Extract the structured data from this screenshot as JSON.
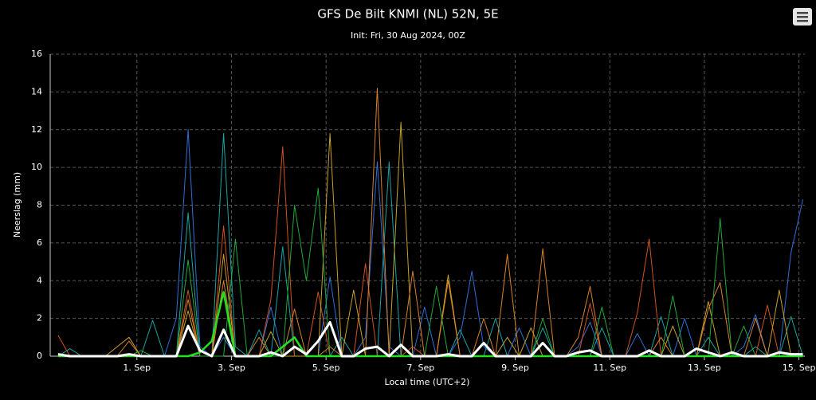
{
  "chart_data": {
    "type": "line",
    "title": "GFS De Bilt KNMI (NL) 52N, 5E",
    "subtitle": "Init: Fri, 30 Aug 2024, 00Z",
    "xlabel": "Local time (UTC+2)",
    "ylabel": "Neerslag (mm)",
    "grid": true,
    "x": [
      "2024-08-30T08:00",
      "2024-08-30T14:00",
      "2024-08-30T20:00",
      "2024-08-31T02:00",
      "2024-08-31T08:00",
      "2024-08-31T14:00",
      "2024-08-31T20:00",
      "2024-09-01T02:00",
      "2024-09-01T08:00",
      "2024-09-01T14:00",
      "2024-09-01T20:00",
      "2024-09-02T02:00",
      "2024-09-02T08:00",
      "2024-09-02T14:00",
      "2024-09-02T20:00",
      "2024-09-03T02:00",
      "2024-09-03T08:00",
      "2024-09-03T14:00",
      "2024-09-03T20:00",
      "2024-09-04T02:00",
      "2024-09-04T08:00",
      "2024-09-04T14:00",
      "2024-09-04T20:00",
      "2024-09-05T02:00",
      "2024-09-05T08:00",
      "2024-09-05T14:00",
      "2024-09-05T20:00",
      "2024-09-06T02:00",
      "2024-09-06T08:00",
      "2024-09-06T14:00",
      "2024-09-06T20:00",
      "2024-09-07T02:00",
      "2024-09-07T08:00",
      "2024-09-07T14:00",
      "2024-09-07T20:00",
      "2024-09-08T02:00",
      "2024-09-08T08:00",
      "2024-09-08T14:00",
      "2024-09-08T20:00",
      "2024-09-09T02:00",
      "2024-09-09T08:00",
      "2024-09-09T14:00",
      "2024-09-09T20:00",
      "2024-09-10T02:00",
      "2024-09-10T08:00",
      "2024-09-10T14:00",
      "2024-09-10T20:00",
      "2024-09-11T02:00",
      "2024-09-11T08:00",
      "2024-09-11T14:00",
      "2024-09-11T20:00",
      "2024-09-12T02:00",
      "2024-09-12T08:00",
      "2024-09-12T14:00",
      "2024-09-12T20:00",
      "2024-09-13T02:00",
      "2024-09-13T08:00",
      "2024-09-13T14:00",
      "2024-09-13T20:00",
      "2024-09-14T02:00",
      "2024-09-14T08:00",
      "2024-09-14T14:00",
      "2024-09-14T20:00",
      "2024-09-15T02:00"
    ],
    "xlim": [
      "2024-08-30T04:00",
      "2024-09-15T03:00"
    ],
    "xticks": [
      {
        "value": "2024-09-01T00:00",
        "label": "1. Sep"
      },
      {
        "value": "2024-09-03T00:00",
        "label": "3. Sep"
      },
      {
        "value": "2024-09-05T00:00",
        "label": "5. Sep"
      },
      {
        "value": "2024-09-07T00:00",
        "label": "7. Sep"
      },
      {
        "value": "2024-09-09T00:00",
        "label": "9. Sep"
      },
      {
        "value": "2024-09-11T00:00",
        "label": "11. Sep"
      },
      {
        "value": "2024-09-13T00:00",
        "label": "13. Sep"
      },
      {
        "value": "2024-09-15T00:00",
        "label": "15. Sep"
      }
    ],
    "ylim": [
      0,
      16
    ],
    "yticks": [
      0,
      2,
      4,
      6,
      8,
      10,
      12,
      14,
      16
    ],
    "series": [
      {
        "color": "#2f6fd6",
        "width": 1,
        "values": [
          0,
          0,
          0,
          0,
          0,
          0,
          0,
          0,
          0,
          0,
          2,
          12,
          0.5,
          0,
          1,
          0,
          0,
          0,
          2.6,
          0,
          0,
          0,
          0,
          4.2,
          0,
          0,
          1,
          10.3,
          0.5,
          0,
          0,
          2.6,
          0,
          0,
          1,
          4.5,
          0.5,
          0,
          0,
          1.5,
          0,
          0,
          0,
          0,
          0.5,
          1.8,
          0,
          0,
          0,
          1.2,
          0,
          0,
          0,
          2,
          0,
          0,
          0,
          0,
          0.5,
          2.2,
          0,
          0,
          5.5,
          8.3
        ]
      },
      {
        "color": "#1aa5a5",
        "width": 1,
        "values": [
          0,
          0.4,
          0,
          0,
          0,
          0,
          0,
          0,
          1.9,
          0,
          0,
          7.6,
          0,
          0,
          11.8,
          0.5,
          0,
          1.4,
          0,
          5.8,
          0,
          0,
          0,
          0,
          1,
          0,
          0,
          0,
          10.3,
          0,
          0,
          0,
          0,
          0,
          1.4,
          0,
          0,
          2,
          0,
          0,
          0,
          1.5,
          0,
          0,
          0,
          0,
          1.5,
          0,
          0,
          0,
          0,
          2.1,
          0,
          0,
          0,
          1,
          0,
          0,
          0,
          0.5,
          0,
          0,
          2.1,
          0
        ]
      },
      {
        "color": "#d0541c",
        "width": 1,
        "values": [
          1.1,
          0,
          0,
          0,
          0,
          0,
          0,
          0,
          0,
          0,
          0,
          3.5,
          0,
          0,
          6.9,
          0,
          0,
          0,
          3,
          11.1,
          0,
          0,
          3.4,
          0,
          0,
          0,
          4.9,
          0,
          0,
          0,
          0.5,
          0,
          0,
          0,
          0,
          0,
          0,
          0,
          0,
          0,
          0,
          0,
          0,
          0,
          0,
          2.8,
          0,
          0,
          0,
          2.3,
          6.2,
          0,
          0,
          0,
          0,
          0,
          0,
          0,
          0,
          0,
          2.7,
          0,
          0,
          0
        ]
      },
      {
        "color": "#c9a227",
        "width": 1,
        "values": [
          0,
          0,
          0,
          0,
          0,
          0.5,
          1,
          0,
          0,
          0,
          0,
          2.4,
          0,
          0,
          5.4,
          0,
          0,
          0,
          1.3,
          0,
          0,
          0,
          0,
          11.8,
          0,
          3.5,
          0,
          0,
          0,
          12.4,
          0,
          0,
          0,
          4.3,
          0,
          0,
          0,
          0,
          1,
          0,
          1.5,
          0,
          0,
          0,
          0,
          0,
          0,
          0,
          0,
          0,
          0,
          0,
          1.6,
          0,
          0,
          2.9,
          0,
          0,
          0,
          0,
          0,
          3.5,
          0,
          0
        ]
      },
      {
        "color": "#d9822b",
        "width": 1,
        "values": [
          0,
          0,
          0,
          0,
          0,
          0,
          0.8,
          0,
          0,
          0,
          0,
          3,
          0,
          0,
          4,
          0,
          0,
          1,
          0,
          0,
          2.5,
          0,
          0,
          0.5,
          0,
          0,
          0,
          14.2,
          0,
          0,
          4.5,
          0,
          0,
          4,
          0,
          0,
          2,
          0,
          5.4,
          0,
          0,
          5.7,
          0,
          0,
          1,
          3.7,
          0,
          0,
          0,
          0,
          0,
          1,
          0,
          0,
          0,
          2.5,
          3.9,
          0,
          0,
          2,
          0,
          0,
          0,
          0
        ]
      },
      {
        "color": "#22a83a",
        "width": 1,
        "values": [
          0,
          0,
          0,
          0,
          0,
          0,
          0,
          0.3,
          0,
          0,
          0,
          5.1,
          0,
          0,
          0,
          6.2,
          0,
          0,
          0,
          0,
          8,
          4,
          8.9,
          0,
          0,
          0,
          0,
          0,
          0,
          0,
          0,
          0,
          3.7,
          0,
          0,
          0,
          0,
          0,
          0,
          0,
          0,
          2,
          0,
          0,
          0,
          0,
          2.6,
          0,
          0,
          0,
          0,
          0,
          3.2,
          0,
          0,
          0,
          7.3,
          0,
          1.6,
          0,
          0,
          0,
          0,
          0
        ]
      },
      {
        "color": "#22e022",
        "width": 2.5,
        "values": [
          0,
          0,
          0,
          0,
          0,
          0,
          0,
          0,
          0,
          0,
          0,
          0,
          0.2,
          0.8,
          3.4,
          0,
          0,
          0,
          0,
          0.5,
          1,
          0,
          0,
          0,
          0,
          0,
          0,
          0,
          0,
          0,
          0,
          0,
          0,
          0,
          0,
          0,
          0,
          0,
          0,
          0,
          0,
          0,
          0,
          0,
          0,
          0,
          0,
          0,
          0,
          0,
          0,
          0,
          0,
          0,
          0,
          0,
          0,
          0,
          0,
          0,
          0,
          0,
          0,
          0
        ]
      },
      {
        "color": "#ffffff",
        "width": 3,
        "values": [
          0.1,
          0,
          0,
          0,
          0,
          0,
          0.1,
          0,
          0,
          0,
          0,
          1.6,
          0.3,
          0,
          1.4,
          0,
          0,
          0,
          0.2,
          0,
          0.5,
          0.1,
          0.8,
          1.8,
          0,
          0,
          0.4,
          0.5,
          0,
          0.6,
          0,
          0,
          0,
          0.1,
          0,
          0,
          0.7,
          0,
          0,
          0,
          0,
          0.7,
          0,
          0,
          0.2,
          0.3,
          0,
          0,
          0,
          0,
          0.3,
          0,
          0,
          0,
          0.4,
          0.2,
          0,
          0.2,
          0,
          0,
          0,
          0.2,
          0.1,
          0.1
        ]
      }
    ]
  }
}
